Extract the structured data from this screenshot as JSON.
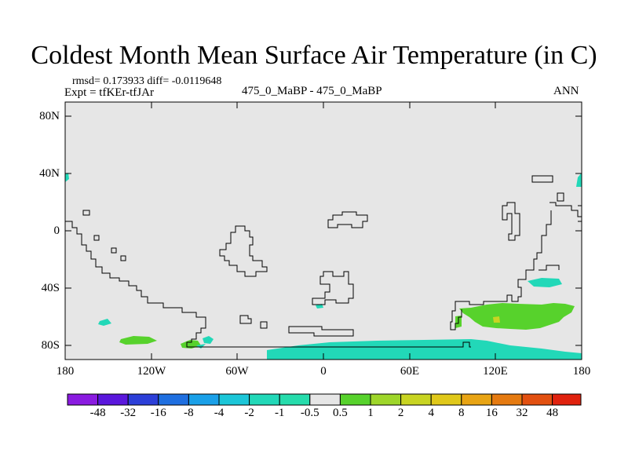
{
  "title": "Coldest Month Mean Surface Air Temperature (in C)",
  "stats_line": "rmsd= 0.173933 diff= -0.0119648",
  "expt_line": "Expt = tfKEr-tfJAr",
  "center_label": "475_0_MaBP - 475_0_MaBP",
  "right_label": "ANN",
  "map": {
    "y_ticks": [
      "80N",
      "40N",
      "0",
      "40S",
      "80S"
    ],
    "x_ticks": [
      "180",
      "120W",
      "60W",
      "0",
      "60E",
      "120E",
      "180"
    ],
    "background_color": "#e6e6e6",
    "landmass_outline_color": "#000000"
  },
  "colorbar": {
    "labels": [
      "-48",
      "-32",
      "-16",
      "-8",
      "-4",
      "-2",
      "-1",
      "-0.5",
      "0.5",
      "1",
      "2",
      "4",
      "8",
      "16",
      "32",
      "48"
    ],
    "colors": [
      "#8a1be0",
      "#5a17dc",
      "#2c3fd8",
      "#1f6fe0",
      "#1aa0e8",
      "#1cc6d8",
      "#22d8b8",
      "#26dcac",
      "#e6e6e6",
      "#57d22c",
      "#9ed62a",
      "#c8d422",
      "#e0c81a",
      "#e8a414",
      "#e57a10",
      "#e25010",
      "#e0220e"
    ]
  }
}
